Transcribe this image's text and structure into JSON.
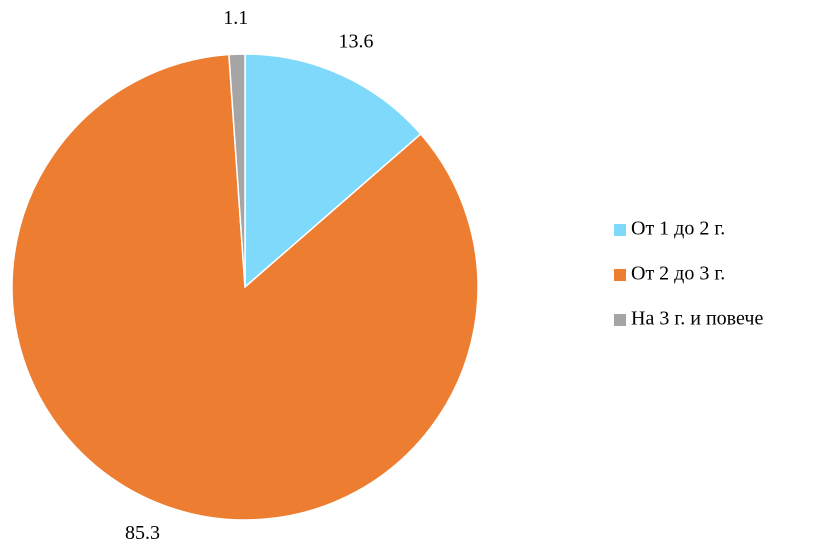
{
  "chart_data": {
    "type": "pie",
    "categories": [
      "От 1 до 2 г.",
      "От 2 до 3 г.",
      "На 3 г. и повече"
    ],
    "values": [
      13.6,
      85.3,
      1.1
    ],
    "colors": [
      "#7fd9fa",
      "#ed7d31",
      "#a5a5a5"
    ],
    "legend": "right"
  }
}
